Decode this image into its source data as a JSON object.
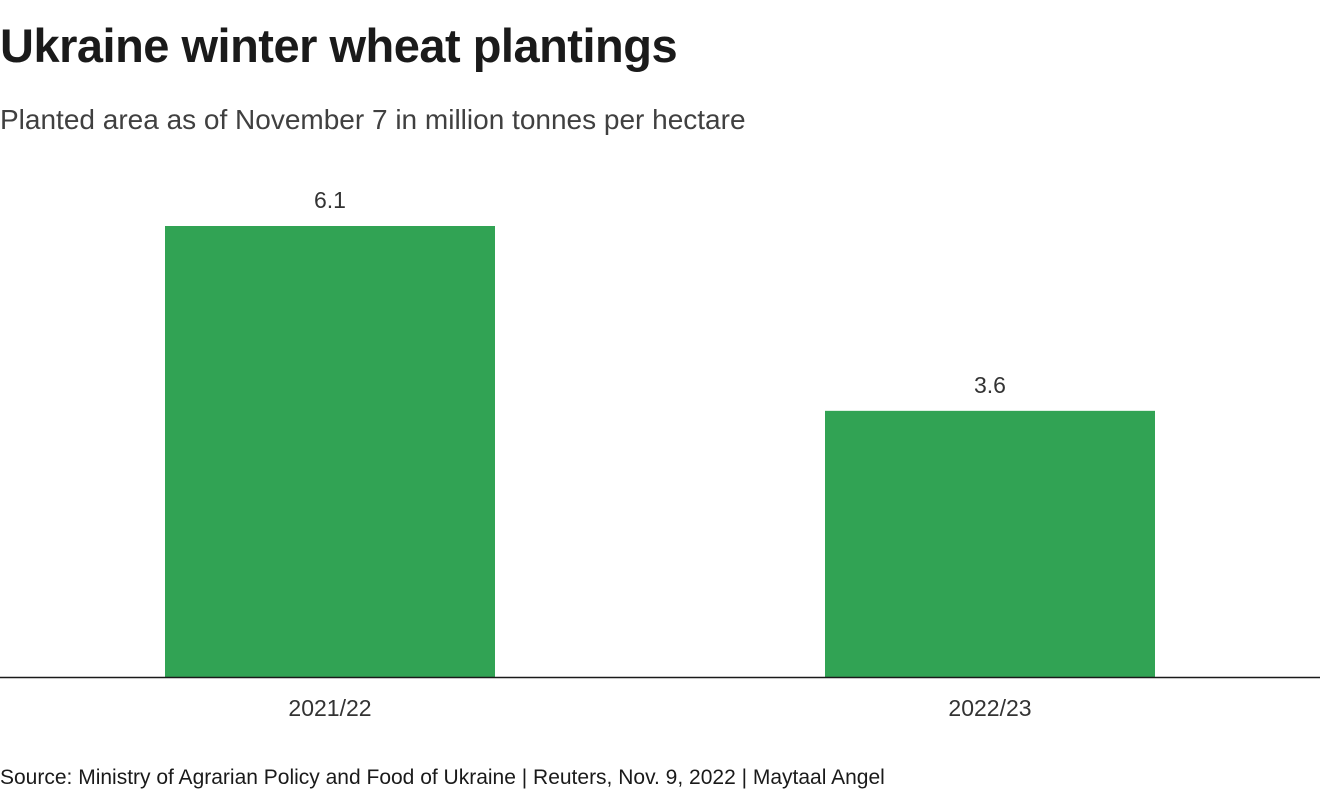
{
  "header": {
    "title": "Ukraine winter wheat plantings",
    "subtitle": "Planted area as of November 7 in million tonnes per hectare"
  },
  "footer": {
    "source": "Source: Ministry of Agrarian Policy and Food of Ukraine | Reuters, Nov. 9, 2022 | Maytaal Angel"
  },
  "colors": {
    "bar": "#31a354",
    "axis": "#1a1a1a"
  },
  "chart_data": {
    "type": "bar",
    "title": "Ukraine winter wheat plantings",
    "subtitle": "Planted area as of November 7 in million tonnes per hectare",
    "categories": [
      "2021/22",
      "2022/23"
    ],
    "values": [
      6.1,
      3.6
    ],
    "value_labels": [
      "6.1",
      "3.6"
    ],
    "xlabel": "",
    "ylabel": "",
    "ylim": [
      0,
      6.1
    ],
    "grid": false,
    "legend": "none"
  }
}
